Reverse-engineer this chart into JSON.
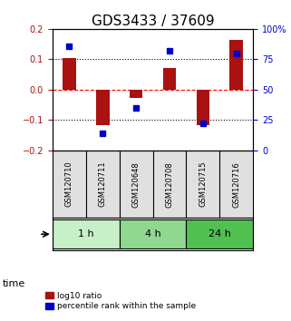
{
  "title": "GDS3433 / 37609",
  "samples": [
    "GSM120710",
    "GSM120711",
    "GSM120648",
    "GSM120708",
    "GSM120715",
    "GSM120716"
  ],
  "log10_ratio": [
    0.103,
    -0.118,
    -0.028,
    0.07,
    -0.118,
    0.165
  ],
  "percentile_rank": [
    0.86,
    0.14,
    0.35,
    0.82,
    0.22,
    0.8
  ],
  "groups": [
    {
      "label": "1 h",
      "indices": [
        0,
        1
      ],
      "color": "#c8f0c8"
    },
    {
      "label": "4 h",
      "indices": [
        2,
        3
      ],
      "color": "#90d890"
    },
    {
      "label": "24 h",
      "indices": [
        4,
        5
      ],
      "color": "#50c050"
    }
  ],
  "bar_color": "#aa1111",
  "dot_color": "#0000cc",
  "ylim_left": [
    -0.2,
    0.2
  ],
  "ylim_right": [
    0,
    100
  ],
  "yticks_left": [
    -0.2,
    -0.1,
    0.0,
    0.1,
    0.2
  ],
  "yticks_right": [
    0,
    25,
    50,
    75,
    100
  ],
  "ytick_labels_right": [
    "0",
    "25",
    "50",
    "75",
    "100%"
  ],
  "hlines": [
    -0.1,
    0.0,
    0.1
  ],
  "hline_styles": [
    "dotted",
    "dashed",
    "dotted"
  ],
  "hline_colors": [
    "black",
    "red",
    "black"
  ],
  "bar_width": 0.4,
  "dot_size": 40,
  "time_label": "time",
  "legend_log10": "log10 ratio",
  "legend_percentile": "percentile rank within the sample",
  "label_color_red": "#aa1111",
  "label_color_blue": "#0000cc",
  "title_fontsize": 11,
  "tick_fontsize": 7,
  "label_fontsize": 8
}
